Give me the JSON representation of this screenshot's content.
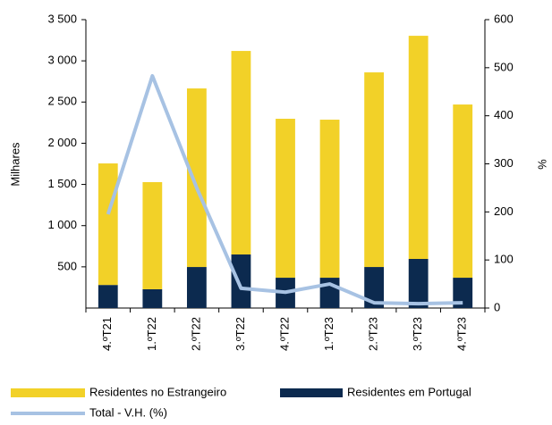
{
  "chart_data": {
    "type": "bar",
    "stacked": true,
    "ylabel": "Milhares",
    "y2label": "%",
    "categories": [
      "4.ºT21",
      "1.ºT22",
      "2.ºT22",
      "3.ºT22",
      "4.ºT22",
      "1.ºT23",
      "2.ºT23",
      "3.ºT23",
      "4.ºT23"
    ],
    "series": [
      {
        "name": "Residentes no Estrangeiro",
        "color": "#f2d128",
        "values": [
          1475,
          1300,
          2167,
          2470,
          1929,
          1918,
          2362,
          2708,
          2102
        ]
      },
      {
        "name": "Residentes em Portugal",
        "color": "#0c2a4f",
        "values": [
          280,
          228,
          498,
          650,
          368,
          368,
          498,
          596,
          368
        ]
      },
      {
        "name": "Total - V.H. (%)",
        "color": "#a7c2e3",
        "type": "line",
        "axis": "y2",
        "values": [
          195,
          483,
          250,
          41,
          33,
          50,
          11,
          9,
          11
        ]
      }
    ],
    "ylim": [
      0,
      3500
    ],
    "yticks": [
      500,
      {
        "value": 1000,
        "label": "1 000"
      },
      {
        "value": 1500,
        "label": "1 500"
      },
      {
        "value": 2000,
        "label": "2 000"
      },
      {
        "value": 2500,
        "label": "2 500"
      },
      {
        "value": 3000,
        "label": "3 000"
      },
      {
        "value": 3500,
        "label": "3 500"
      }
    ],
    "y2lim": [
      0,
      600
    ],
    "y2ticks": [
      0,
      100,
      200,
      300,
      400,
      500,
      600
    ]
  }
}
